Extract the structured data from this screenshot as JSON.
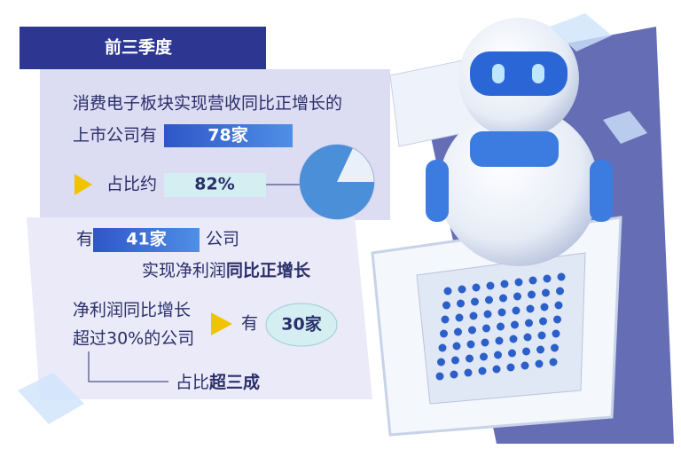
{
  "header": {
    "title": "前三季度"
  },
  "block1": {
    "line1": "消费电子板块实现营收同比正增长的",
    "line2_prefix": "上市公司有",
    "count": "78家",
    "share_prefix": "占比约",
    "share": {
      "value": 82,
      "label": "82%"
    }
  },
  "block2": {
    "prefix": "有",
    "count": "41家",
    "suffix": "公司",
    "line2_prefix": "实现净利润",
    "line2_bold": "同比正增长",
    "q_line1": "净利润同比增长",
    "q_line2": "超过30%的公司",
    "answer_prefix": "有",
    "answer": "30家",
    "share_prefix": "占比",
    "share_bold": "超三成"
  }
}
